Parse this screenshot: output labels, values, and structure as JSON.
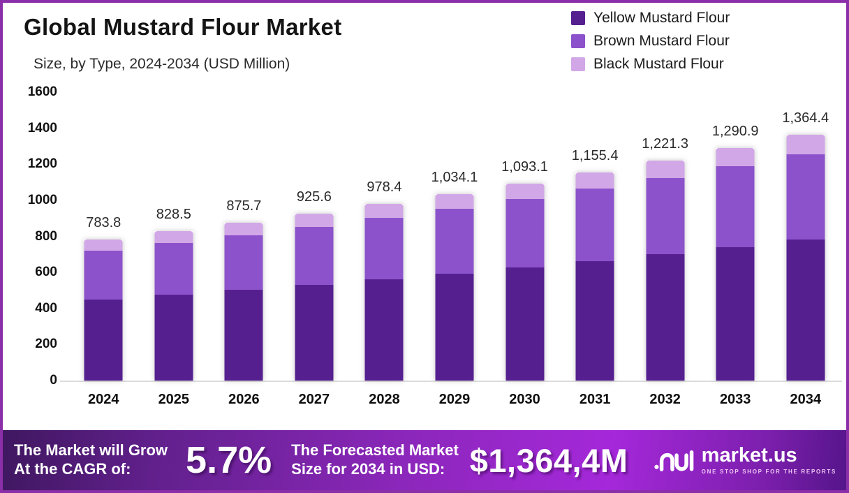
{
  "header": {
    "title": "Global Mustard Flour Market",
    "subtitle": "Size, by Type, 2024-2034 (USD Million)"
  },
  "chart_data": {
    "type": "bar",
    "stacked": true,
    "title": "Global Mustard Flour Market Size, by Type, 2024-2034 (USD Million)",
    "categories": [
      "2024",
      "2025",
      "2026",
      "2027",
      "2028",
      "2029",
      "2030",
      "2031",
      "2032",
      "2033",
      "2034"
    ],
    "series": [
      {
        "key": "yellow",
        "name": "Yellow Mustard Flour",
        "color": "#551f8f",
        "values": [
          449.1,
          474.7,
          501.8,
          530.4,
          560.6,
          592.5,
          626.3,
          662.0,
          699.8,
          739.7,
          781.8
        ]
      },
      {
        "key": "brown",
        "name": "Brown Mustard Flour",
        "color": "#8c52cb",
        "values": [
          272.8,
          288.3,
          304.7,
          322.1,
          340.5,
          359.9,
          380.4,
          402.1,
          425.0,
          449.2,
          474.8
        ]
      },
      {
        "key": "black",
        "name": "Black Mustard Flour",
        "color": "#d2a7e7",
        "values": [
          61.9,
          65.5,
          69.2,
          73.1,
          77.3,
          81.7,
          86.4,
          91.3,
          96.5,
          102.0,
          107.8
        ]
      }
    ],
    "totals": [
      783.8,
      828.5,
      875.7,
      925.6,
      978.4,
      1034.1,
      1093.1,
      1155.4,
      1221.3,
      1290.9,
      1364.4
    ],
    "total_labels": [
      "783.8",
      "828.5",
      "875.7",
      "925.6",
      "978.4",
      "1,034.1",
      "1,093.1",
      "1,155.4",
      "1,221.3",
      "1,290.9",
      "1,364.4"
    ],
    "ylim": [
      0,
      1600
    ],
    "yticks": [
      0,
      200,
      400,
      600,
      800,
      1000,
      1200,
      1400,
      1600
    ],
    "grid": false,
    "legend_position": "top-right"
  },
  "banner": {
    "cagr_label_line1": "The Market will Grow",
    "cagr_label_line2": "At the CAGR of:",
    "cagr_value": "5.7%",
    "forecast_label_line1": "The Forecasted Market",
    "forecast_label_line2": "Size for 2034 in USD:",
    "forecast_value": "$1,364,4M",
    "brand": {
      "name": "market.us",
      "tagline": "ONE STOP SHOP FOR THE REPORTS"
    }
  }
}
